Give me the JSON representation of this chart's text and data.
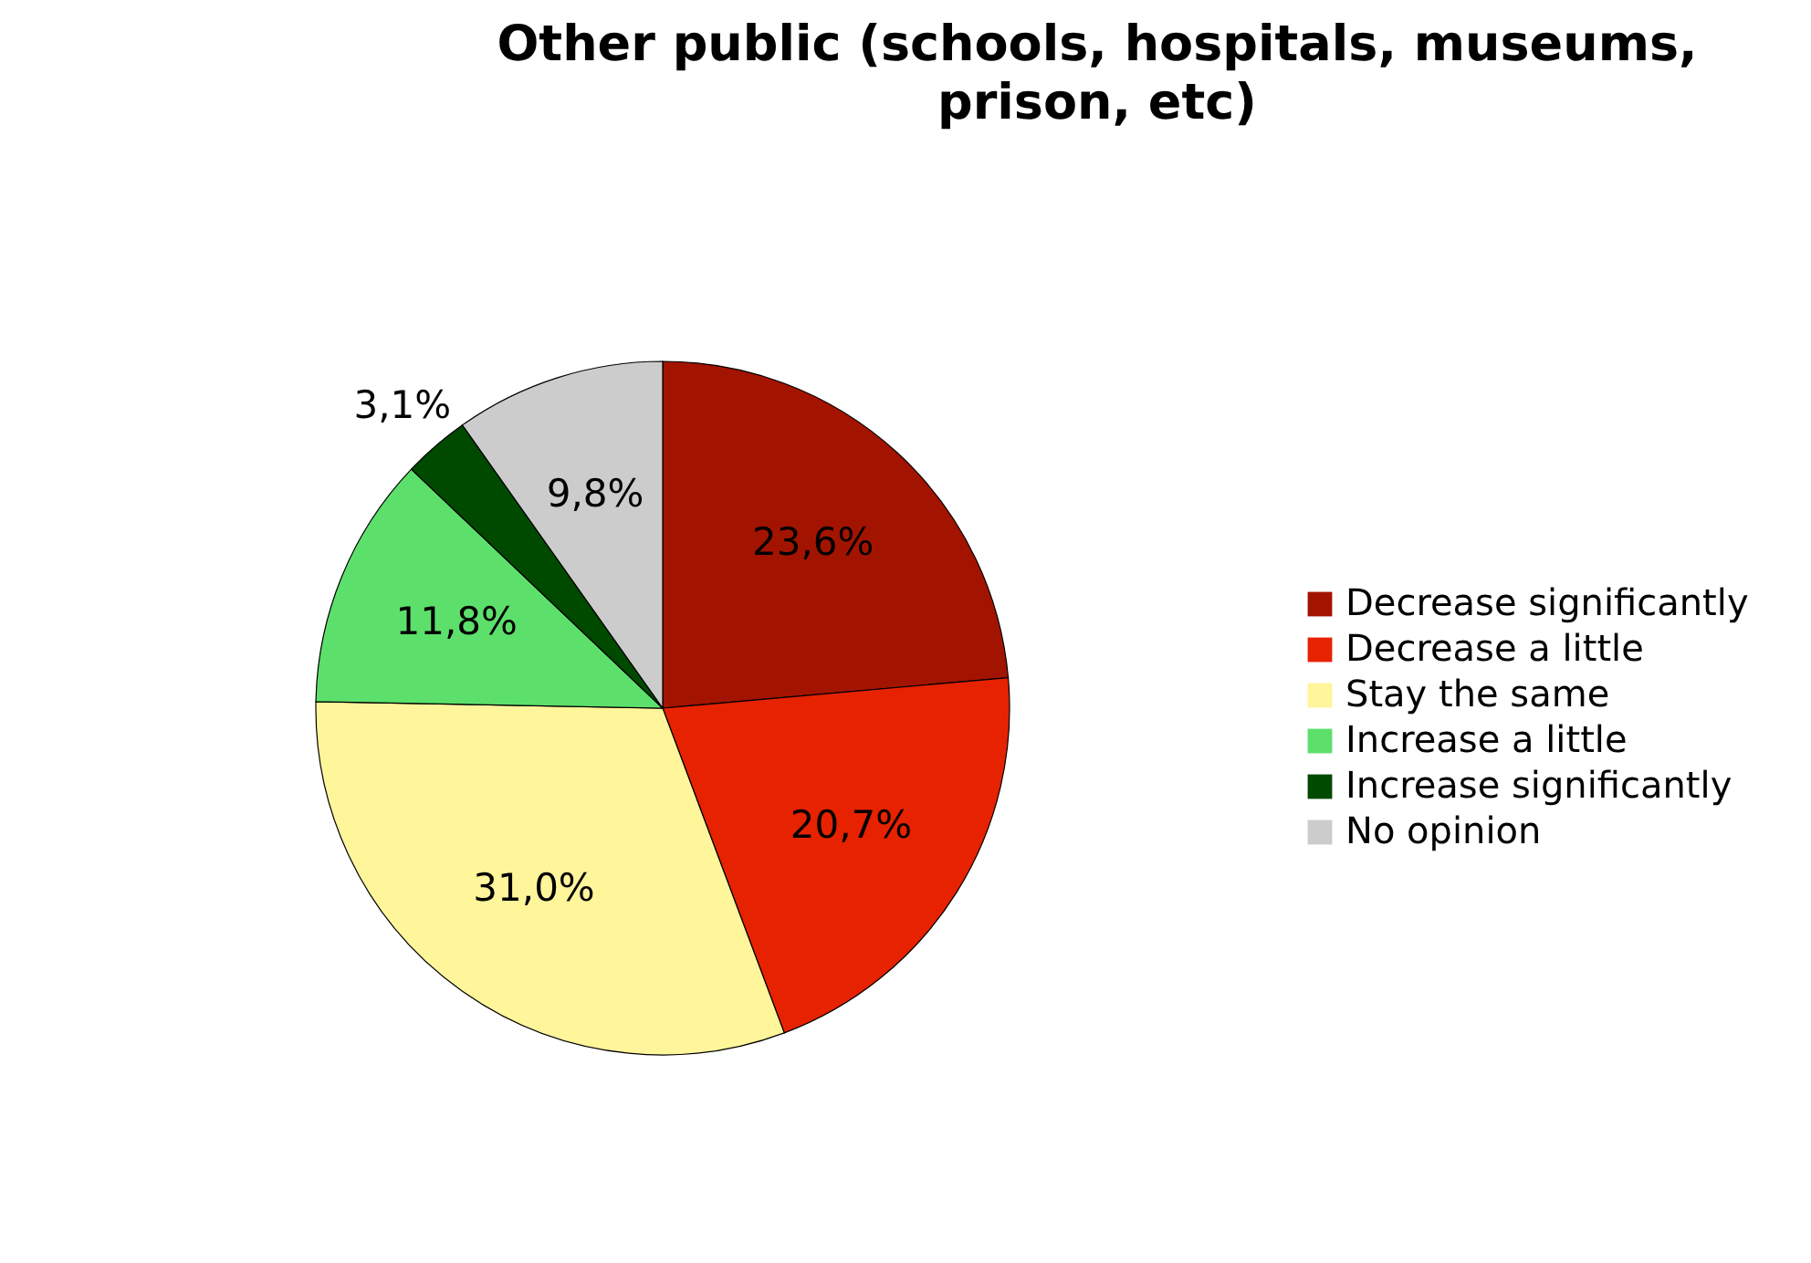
{
  "chart_data": {
    "type": "pie",
    "title": "Other public (schools, hospitals, museums, prison, etc)",
    "categories": [
      "Decrease significantly",
      "Decrease a little",
      "Stay the same",
      "Increase a little",
      "Increase significantly",
      "No opinion"
    ],
    "values": [
      23.6,
      20.7,
      31.0,
      11.8,
      3.1,
      9.8
    ],
    "value_labels": [
      "23,6%",
      "20,7%",
      "31,0%",
      "11,8%",
      "3,1%",
      "9,8%"
    ],
    "colors": [
      "#a31400",
      "#e62200",
      "#fff59b",
      "#5ce06b",
      "#004a00",
      "#cccccc"
    ],
    "legend": "right"
  }
}
